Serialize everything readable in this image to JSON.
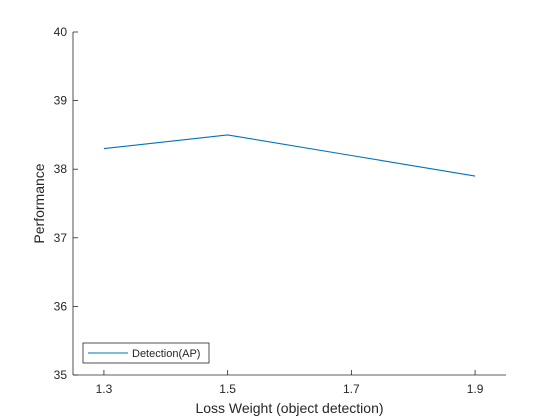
{
  "chart_data": {
    "type": "line",
    "title": "",
    "xlabel": "Loss Weight (object detection)",
    "ylabel": "Performance",
    "x": [
      1.3,
      1.5,
      1.7,
      1.9
    ],
    "x_ticks": [
      "1.3",
      "1.5",
      "1.7",
      "1.9"
    ],
    "xlim": [
      1.25,
      1.95
    ],
    "y_ticks": [
      "35",
      "36",
      "37",
      "38",
      "39",
      "40"
    ],
    "ylim": [
      35,
      40
    ],
    "grid": false,
    "legend_position": "bottom-left",
    "series": [
      {
        "name": "Detection(AP)",
        "values": [
          38.3,
          38.5,
          38.2,
          37.9
        ],
        "color": "#0072BD"
      }
    ]
  }
}
